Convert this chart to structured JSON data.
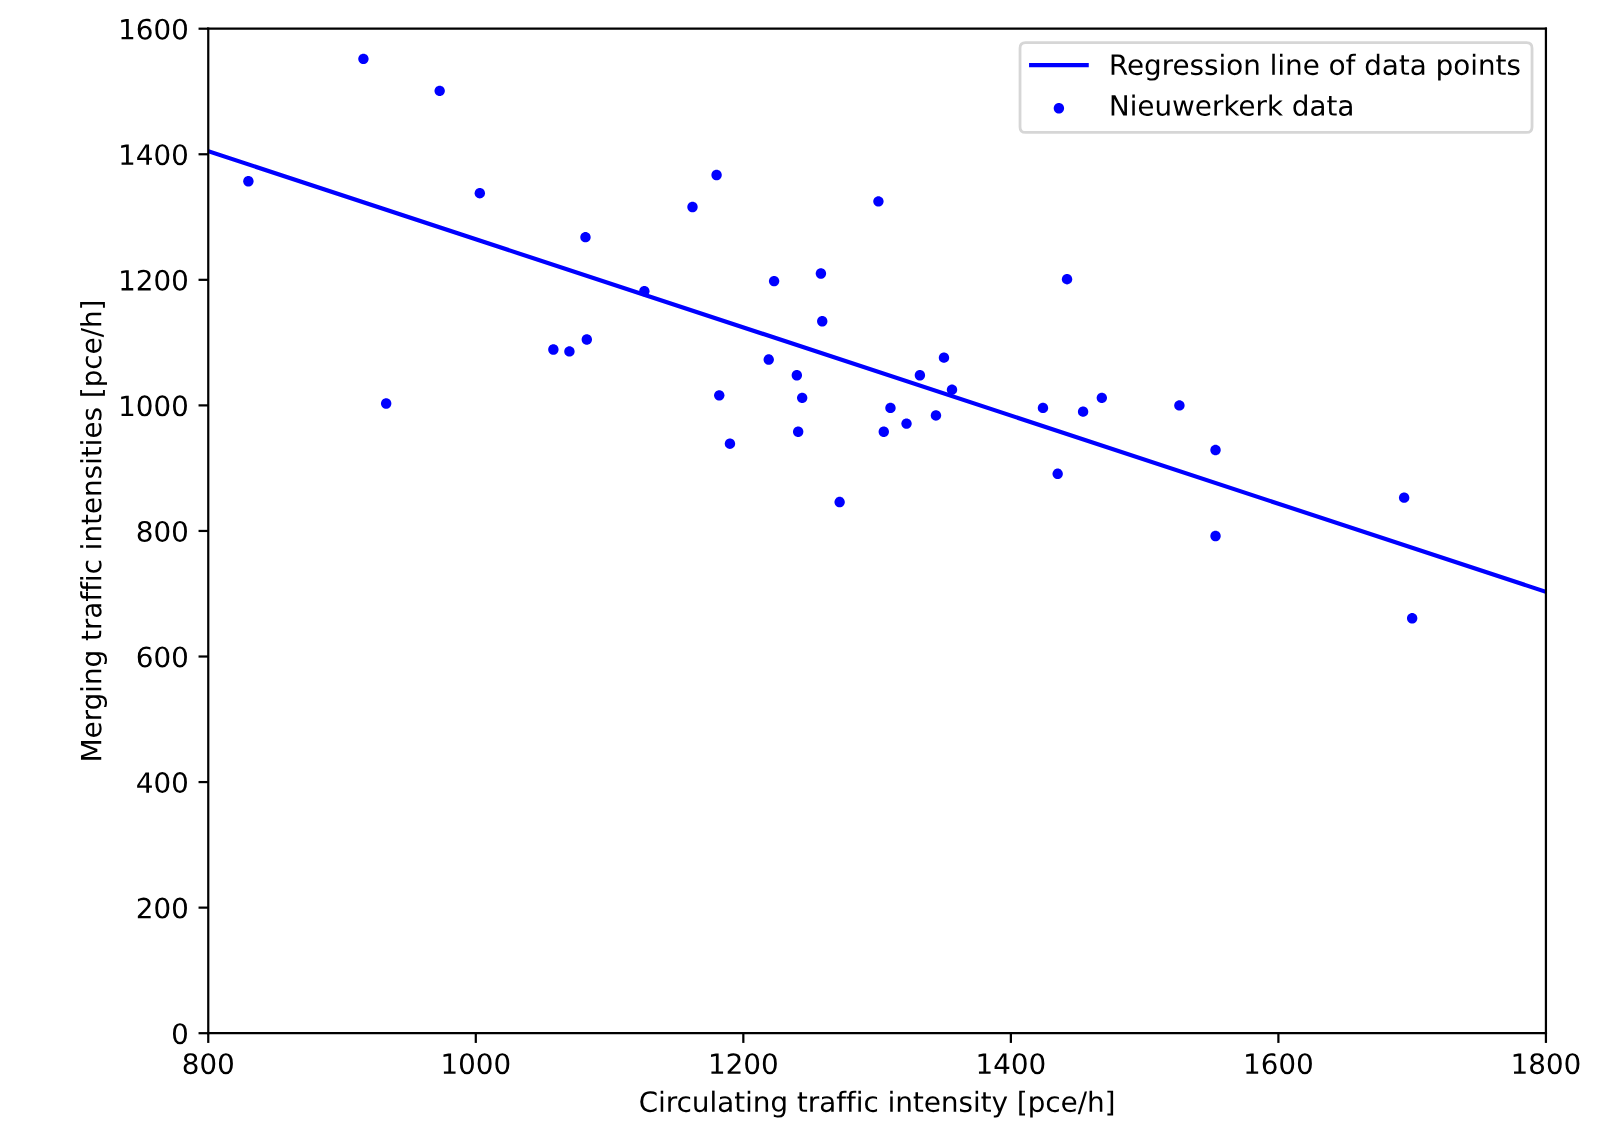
{
  "chart_data": {
    "type": "scatter",
    "xlabel": "Circulating traffic intensity [pce/h]",
    "ylabel": "Merging traffic intensities [pce/h]",
    "xlim": [
      800,
      1800
    ],
    "ylim": [
      0,
      1600
    ],
    "xticks": [
      800,
      1000,
      1200,
      1400,
      1600,
      1800
    ],
    "yticks": [
      0,
      200,
      400,
      600,
      800,
      1000,
      1200,
      1400,
      1600
    ],
    "grid": false,
    "legend": "top right",
    "series": [
      {
        "name": "Regression line of data points",
        "type": "line",
        "color": "#0000ff",
        "marker": "none",
        "line_style": "solid",
        "x": [
          800,
          1800
        ],
        "values": [
          1405,
          703
        ]
      },
      {
        "name": "Nieuwerkerk data",
        "color": "#0000ff",
        "marker": "circle",
        "x": [
          830,
          916,
          933,
          973,
          1003,
          1058,
          1070,
          1082,
          1083,
          1126,
          1162,
          1180,
          1182,
          1190,
          1219,
          1223,
          1240,
          1241,
          1244,
          1258,
          1259,
          1272,
          1301,
          1305,
          1310,
          1322,
          1332,
          1344,
          1350,
          1356,
          1424,
          1435,
          1442,
          1454,
          1468,
          1526,
          1553,
          1553,
          1694,
          1700
        ],
        "values": [
          1357,
          1552,
          1003,
          1501,
          1338,
          1089,
          1086,
          1268,
          1105,
          1182,
          1316,
          1367,
          1016,
          939,
          1073,
          1198,
          1048,
          958,
          1012,
          1210,
          1134,
          846,
          1325,
          958,
          996,
          971,
          1048,
          984,
          1076,
          1025,
          996,
          891,
          1201,
          990,
          1012,
          1000,
          929,
          792,
          853,
          661
        ]
      }
    ]
  }
}
